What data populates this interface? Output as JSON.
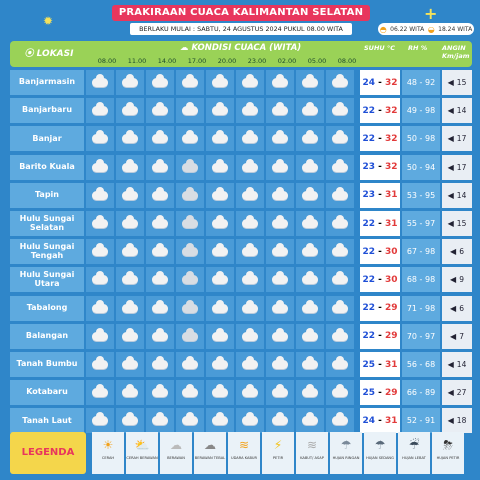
{
  "title": "PRAKIRAAN CUACA KALIMANTAN SELATAN",
  "subtitle": "BERLAKU MULAI : SABTU, 24 AGUSTUS 2024 PUKUL 08.00 WITA",
  "sunrise": "06.22 WITA",
  "sunset": "18.24 WITA",
  "header": {
    "lokasi": "LOKASI",
    "kondisi": "KONDISI CUACA (WITA)",
    "suhu": "SUHU °C",
    "rh": "RH %",
    "angin": "ANGIN Km/jam",
    "times": [
      "08.00",
      "11.00",
      "14.00",
      "17.00",
      "20.00",
      "23.00",
      "02.00",
      "05.00",
      "08.00"
    ]
  },
  "rows": [
    {
      "name": "Banjarmasin",
      "tmin": "24",
      "tmax": "32",
      "rh": "48 - 92",
      "wind": "15",
      "icons": [
        "c",
        "c",
        "c",
        "c",
        "c",
        "c",
        "c",
        "c",
        "c"
      ]
    },
    {
      "name": "Banjarbaru",
      "tmin": "22",
      "tmax": "32",
      "rh": "49 - 98",
      "wind": "14",
      "icons": [
        "c",
        "c",
        "c",
        "s",
        "c",
        "c",
        "c",
        "c",
        "c"
      ]
    },
    {
      "name": "Banjar",
      "tmin": "22",
      "tmax": "32",
      "rh": "50 - 98",
      "wind": "17",
      "icons": [
        "c",
        "c",
        "c",
        "c",
        "c",
        "c",
        "c",
        "c",
        "c"
      ]
    },
    {
      "name": "Barito Kuala",
      "tmin": "23",
      "tmax": "32",
      "rh": "50 - 94",
      "wind": "17",
      "icons": [
        "c",
        "c",
        "c",
        "r",
        "c",
        "c",
        "s",
        "c",
        "c"
      ]
    },
    {
      "name": "Tapin",
      "tmin": "23",
      "tmax": "31",
      "rh": "53 - 95",
      "wind": "14",
      "icons": [
        "c",
        "c",
        "c",
        "r",
        "c",
        "c",
        "s",
        "c",
        "c"
      ]
    },
    {
      "name": "Hulu Sungai Selatan",
      "tmin": "22",
      "tmax": "31",
      "rh": "55 - 97",
      "wind": "15",
      "icons": [
        "c",
        "c",
        "c",
        "r",
        "c",
        "c",
        "c",
        "c",
        "c"
      ]
    },
    {
      "name": "Hulu Sungai Tengah",
      "tmin": "22",
      "tmax": "30",
      "rh": "67 - 98",
      "wind": "6",
      "icons": [
        "c",
        "c",
        "c",
        "r",
        "c",
        "c",
        "c",
        "c",
        "c"
      ]
    },
    {
      "name": "Hulu Sungai Utara",
      "tmin": "22",
      "tmax": "30",
      "rh": "68 - 98",
      "wind": "9",
      "icons": [
        "c",
        "c",
        "c",
        "r",
        "c",
        "c",
        "c",
        "c",
        "c"
      ]
    },
    {
      "name": "Tabalong",
      "tmin": "22",
      "tmax": "29",
      "rh": "71 - 98",
      "wind": "6",
      "icons": [
        "c",
        "c",
        "c",
        "r",
        "c",
        "c",
        "c",
        "c",
        "c"
      ]
    },
    {
      "name": "Balangan",
      "tmin": "22",
      "tmax": "29",
      "rh": "70 - 97",
      "wind": "7",
      "icons": [
        "c",
        "c",
        "c",
        "r",
        "c",
        "c",
        "c",
        "c",
        "c"
      ]
    },
    {
      "name": "Tanah Bumbu",
      "tmin": "25",
      "tmax": "31",
      "rh": "56 - 68",
      "wind": "14",
      "icons": [
        "c",
        "c",
        "c",
        "c",
        "s",
        "c",
        "c",
        "c",
        "c"
      ]
    },
    {
      "name": "Kotabaru",
      "tmin": "25",
      "tmax": "29",
      "rh": "66 - 89",
      "wind": "27",
      "icons": [
        "c",
        "c",
        "s",
        "c",
        "c",
        "c",
        "c",
        "c",
        "c"
      ]
    },
    {
      "name": "Tanah Laut",
      "tmin": "24",
      "tmax": "31",
      "rh": "52 - 91",
      "wind": "18",
      "icons": [
        "c",
        "c",
        "c",
        "s",
        "c",
        "c",
        "c",
        "c",
        "c"
      ]
    }
  ],
  "legend": {
    "title": "LEGENDA",
    "items": [
      "CERAH",
      "CERAH BERAWAN",
      "BERAWAN",
      "BERAWAN TEBAL",
      "UDARA KABUR",
      "PETIR",
      "KABUT/ ASAP",
      "HUJAN RINGAN",
      "HUJAN SEDANG",
      "HUJAN LEBAT",
      "HUJAN PETIR"
    ]
  }
}
